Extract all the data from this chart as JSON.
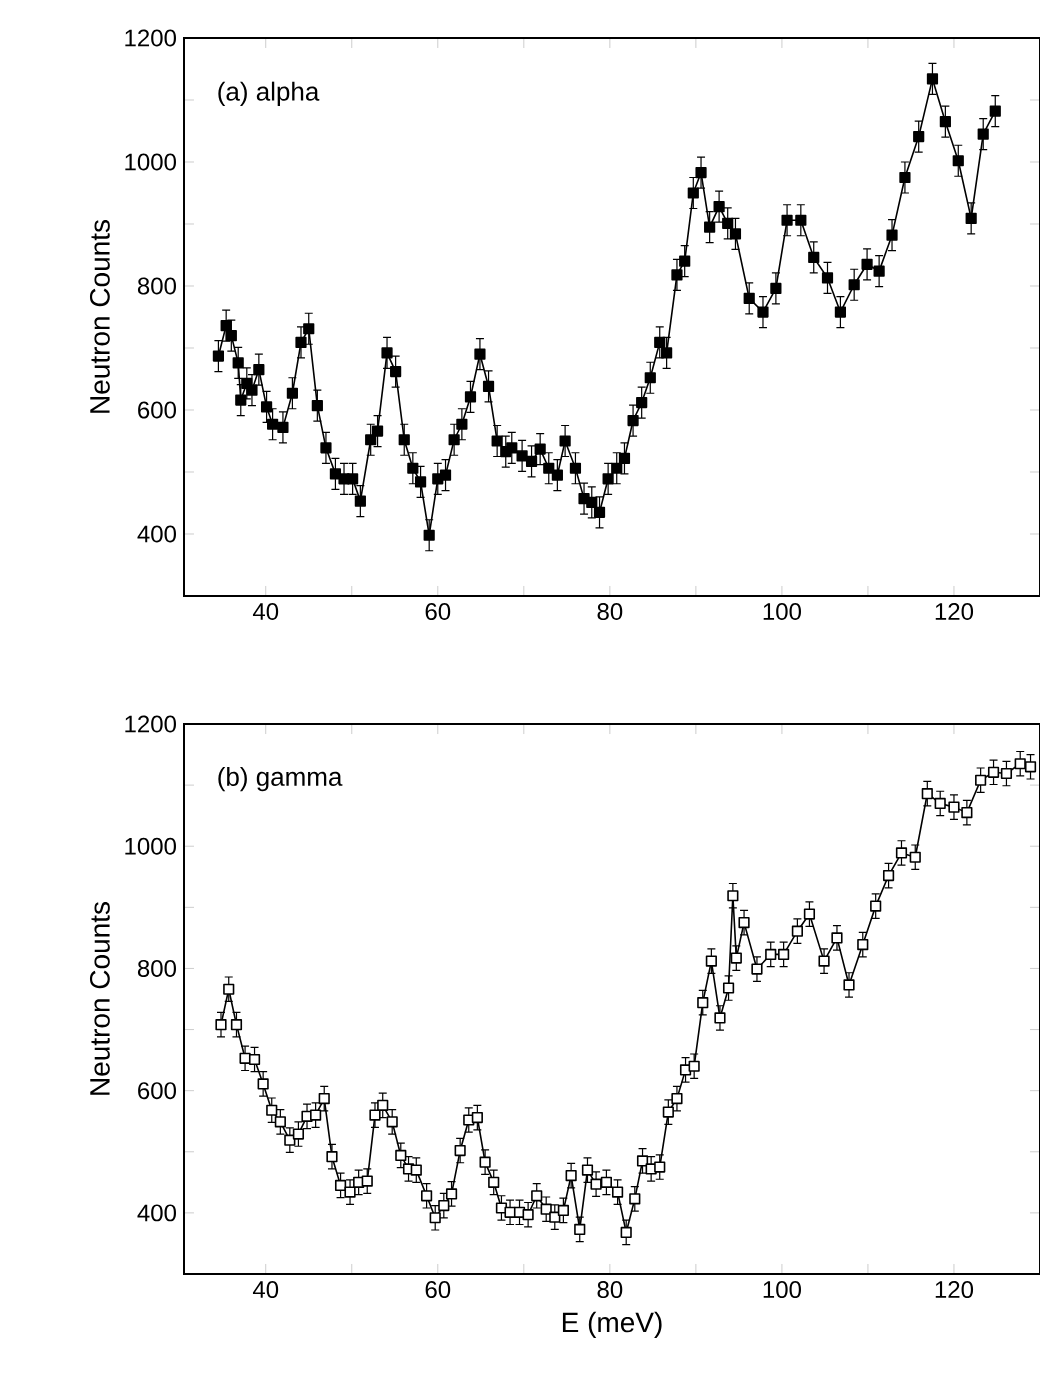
{
  "chart_data": [
    {
      "type": "line",
      "marker": "square",
      "color": "#000000",
      "annotations": [
        "(a) alpha"
      ],
      "ylabel": "Neutron Counts",
      "xlim": [
        30.5,
        130
      ],
      "ylim": [
        300,
        1200
      ],
      "xticks": [
        40,
        {
          "value": 50,
          "label": null
        },
        60,
        {
          "value": 70,
          "label": null
        },
        80,
        {
          "value": 90,
          "label": null
        },
        100,
        {
          "value": 110,
          "label": null
        },
        120
      ],
      "yticks": [
        400,
        {
          "value": 500,
          "label": null
        },
        600,
        {
          "value": 700,
          "label": null
        },
        800,
        {
          "value": 900,
          "label": null
        },
        1000,
        {
          "value": 1100,
          "label": null
        },
        1200
      ],
      "x": [
        34.5,
        35.4,
        36.0,
        36.8,
        37.1,
        37.8,
        38.4,
        39.2,
        40.1,
        40.8,
        42.0,
        43.1,
        44.1,
        45.0,
        46.0,
        47.0,
        48.1,
        49.1,
        50.1,
        51.0,
        52.2,
        53.0,
        54.1,
        55.1,
        56.1,
        57.1,
        58.0,
        59.0,
        60.0,
        60.9,
        61.9,
        62.8,
        63.8,
        64.9,
        65.9,
        66.9,
        67.9,
        68.6,
        69.8,
        70.9,
        71.9,
        72.9,
        73.9,
        74.8,
        76.0,
        77.0,
        77.9,
        78.8,
        79.8,
        80.8,
        81.7,
        82.7,
        83.7,
        84.7,
        85.8,
        86.6,
        87.8,
        88.7,
        89.7,
        90.6,
        91.6,
        92.7,
        93.7,
        94.6,
        96.2,
        97.8,
        99.3,
        100.6,
        102.2,
        103.7,
        105.3,
        106.8,
        108.4,
        109.9,
        111.3,
        112.8,
        114.3,
        115.9,
        117.5,
        119.0,
        120.5,
        122.0,
        123.4,
        124.8
      ],
      "values": [
        687,
        736,
        720,
        676,
        616,
        643,
        632,
        665,
        605,
        577,
        572,
        627,
        709,
        731,
        607,
        539,
        497,
        489,
        489,
        453,
        552,
        566,
        692,
        662,
        552,
        506,
        484,
        398,
        489,
        495,
        552,
        577,
        621,
        690,
        638,
        550,
        533,
        539,
        526,
        517,
        537,
        506,
        495,
        550,
        506,
        457,
        451,
        435,
        489,
        506,
        522,
        583,
        612,
        652,
        709,
        692,
        818,
        840,
        950,
        983,
        895,
        928,
        901,
        884,
        780,
        758,
        796,
        906,
        906,
        846,
        813,
        758,
        802,
        835,
        824,
        882,
        975,
        1041,
        1134,
        1065,
        1002,
        909,
        1045,
        1082
      ],
      "errors": [
        25,
        25,
        25,
        25,
        25,
        25,
        25,
        25,
        25,
        25,
        25,
        25,
        25,
        25,
        25,
        25,
        25,
        25,
        25,
        25,
        25,
        25,
        25,
        25,
        25,
        25,
        25,
        25,
        25,
        25,
        25,
        25,
        25,
        25,
        25,
        25,
        25,
        25,
        25,
        25,
        25,
        25,
        25,
        25,
        25,
        25,
        25,
        25,
        25,
        25,
        25,
        25,
        25,
        25,
        25,
        25,
        25,
        25,
        25,
        25,
        25,
        25,
        25,
        25,
        25,
        25,
        25,
        25,
        25,
        25,
        25,
        25,
        25,
        25,
        25,
        25,
        25,
        25,
        25,
        25,
        25,
        25,
        25,
        25
      ]
    },
    {
      "type": "line",
      "marker": "square",
      "color": "#000000",
      "annotations": [
        "(b) gamma"
      ],
      "ylabel": "Neutron Counts",
      "xlabel": "E (meV)",
      "xlim": [
        30.5,
        130
      ],
      "ylim": [
        300,
        1200
      ],
      "xticks": [
        40,
        {
          "value": 50,
          "label": null
        },
        60,
        {
          "value": 70,
          "label": null
        },
        80,
        {
          "value": 90,
          "label": null
        },
        100,
        {
          "value": 110,
          "label": null
        },
        120
      ],
      "yticks": [
        400,
        {
          "value": 500,
          "label": null
        },
        600,
        {
          "value": 700,
          "label": null
        },
        800,
        {
          "value": 900,
          "label": null
        },
        1000,
        {
          "value": 1100,
          "label": null
        },
        1200
      ],
      "x": [
        34.8,
        35.7,
        36.6,
        37.6,
        38.7,
        39.7,
        40.7,
        41.7,
        42.8,
        43.8,
        44.8,
        45.8,
        46.8,
        47.7,
        48.7,
        49.8,
        50.8,
        51.8,
        52.7,
        53.6,
        54.7,
        55.7,
        56.6,
        57.5,
        58.7,
        59.7,
        60.7,
        61.6,
        62.6,
        63.6,
        64.6,
        65.5,
        66.5,
        67.4,
        68.4,
        69.5,
        70.5,
        71.5,
        72.6,
        73.6,
        74.6,
        75.5,
        76.5,
        77.4,
        78.4,
        79.6,
        80.9,
        81.9,
        82.9,
        83.8,
        84.8,
        85.8,
        86.8,
        87.8,
        88.8,
        89.8,
        90.8,
        91.8,
        92.8,
        93.8,
        94.3,
        94.7,
        95.6,
        97.1,
        98.7,
        100.2,
        101.8,
        103.2,
        104.9,
        106.4,
        107.8,
        109.4,
        110.9,
        112.4,
        113.9,
        115.5,
        116.9,
        118.4,
        120.0,
        121.5,
        123.1,
        124.6,
        126.1,
        127.7,
        128.9
      ],
      "values": [
        708,
        766,
        708,
        653,
        651,
        611,
        568,
        549,
        519,
        529,
        558,
        560,
        587,
        492,
        445,
        434,
        450,
        452,
        560,
        576,
        549,
        494,
        472,
        470,
        428,
        392,
        412,
        431,
        502,
        552,
        556,
        483,
        450,
        408,
        401,
        401,
        397,
        428,
        406,
        393,
        404,
        461,
        373,
        470,
        447,
        450,
        434,
        368,
        423,
        485,
        472,
        475,
        565,
        587,
        634,
        640,
        744,
        812,
        719,
        768,
        919,
        817,
        875,
        799,
        823,
        823,
        861,
        889,
        812,
        850,
        773,
        839,
        902,
        952,
        989,
        982,
        1086,
        1070,
        1064,
        1055,
        1108,
        1121,
        1119,
        1135,
        1130
      ],
      "errors": [
        20,
        20,
        20,
        20,
        20,
        20,
        20,
        20,
        20,
        20,
        20,
        20,
        20,
        20,
        20,
        20,
        20,
        20,
        20,
        20,
        20,
        20,
        20,
        20,
        20,
        20,
        20,
        20,
        20,
        20,
        20,
        20,
        20,
        20,
        20,
        20,
        20,
        20,
        20,
        20,
        20,
        20,
        20,
        20,
        20,
        20,
        20,
        20,
        20,
        20,
        20,
        20,
        20,
        20,
        20,
        20,
        20,
        20,
        20,
        20,
        20,
        20,
        20,
        20,
        20,
        20,
        20,
        20,
        20,
        20,
        20,
        20,
        20,
        20,
        20,
        20,
        20,
        20,
        20,
        20,
        20,
        20,
        20,
        20,
        20
      ]
    }
  ]
}
